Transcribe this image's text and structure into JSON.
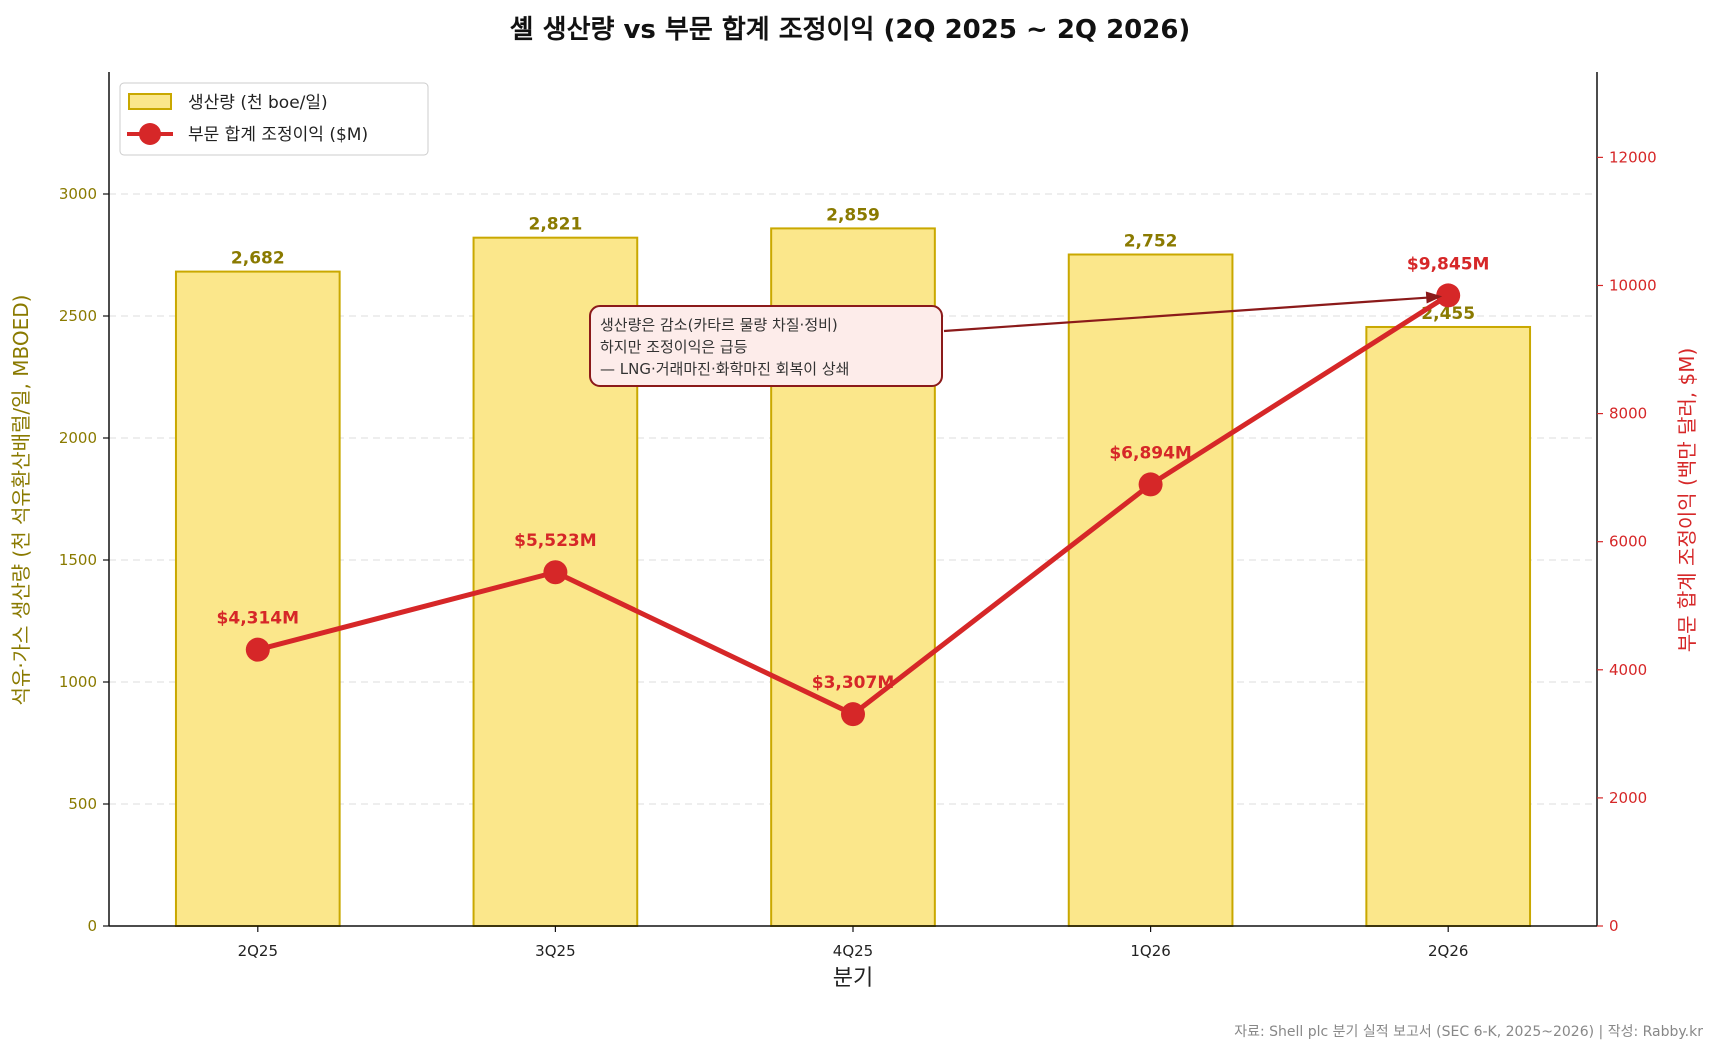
{
  "chart_data": {
    "type": "bar",
    "title": "셸 생산량 vs 부문 합계 조정이익 (2Q 2025 ~ 2Q 2026)",
    "xlabel": "분기",
    "ylabel_left": "석유·가스 생산량 (천 석유환산배럴/일, MBOED)",
    "ylabel_right": "부문 합계 조정이익 (백만 달러, $M)",
    "categories": [
      "2Q25",
      "3Q25",
      "4Q25",
      "1Q26",
      "2Q26"
    ],
    "series": [
      {
        "name": "생산량 (천 boe/일)",
        "type": "bar",
        "axis": "left",
        "values": [
          2682,
          2821,
          2859,
          2752,
          2455
        ],
        "labels": [
          "2,682",
          "2,821",
          "2,859",
          "2,752",
          "2,455"
        ]
      },
      {
        "name": "부문 합계 조정이익 ($M)",
        "type": "line",
        "axis": "right",
        "values": [
          4314,
          5523,
          3307,
          6894,
          9845
        ],
        "labels": [
          "$4,314M",
          "$5,523M",
          "$3,307M",
          "$6,894M",
          "$9,845M"
        ]
      }
    ],
    "ylim_left": [
      0,
      3500
    ],
    "ylim_right": [
      0,
      13333
    ],
    "yticks_left": [
      "0",
      "500",
      "1000",
      "1500",
      "2000",
      "2500",
      "3000"
    ],
    "yticks_right": [
      "0",
      "2000",
      "4000",
      "6000",
      "8000",
      "10000",
      "12000"
    ],
    "grid": "horizontal dashed",
    "legend_position": "top-left",
    "annotation": {
      "lines": [
        "생산량은 감소(카타르 물량 차질·정비)",
        "하지만 조정이익은 급등",
        "— LNG·거래마진·화학마진 회복이 상쇄"
      ],
      "points_to": "2Q26"
    },
    "colors": {
      "bar_fill": "#fbe78b",
      "bar_edge": "#c9a800",
      "bar_text": "#8a7a00",
      "line": "#d62728",
      "annotation_edge": "#8b1a1a",
      "annotation_fill": "#fdecea"
    }
  },
  "footer": {
    "source": "자료: Shell plc 분기 실적 보고서 (SEC 6-K, 2025~2026) | 작성: Rabby.kr"
  }
}
